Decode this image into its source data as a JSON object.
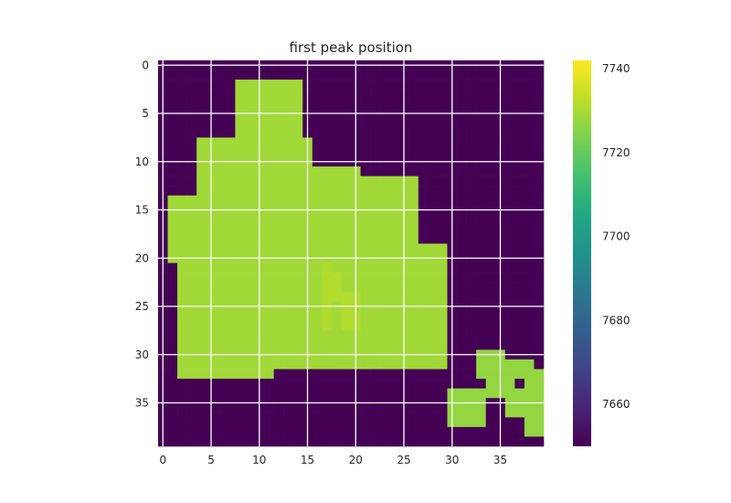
{
  "chart_data": {
    "type": "heatmap",
    "title": "first peak position",
    "xlabel": "",
    "ylabel": "",
    "rows": 40,
    "cols": 40,
    "x_ticks": [
      0,
      5,
      10,
      15,
      20,
      25,
      30,
      35
    ],
    "y_ticks": [
      0,
      5,
      10,
      15,
      20,
      25,
      30,
      35
    ],
    "grid": true,
    "colormap": "viridis",
    "colorbar": {
      "vmin": 7650,
      "vmax": 7742,
      "ticks": [
        7660,
        7680,
        7700,
        7720,
        7740
      ]
    },
    "background_value": 7650,
    "regions": [
      {
        "value": 7729,
        "rects": [
          [
            2,
            22,
            16,
            30
          ],
          [
            3,
            26,
            27,
            28
          ],
          [
            9,
            22,
            12,
            29
          ],
          [
            10,
            26,
            13,
            30
          ],
          [
            5,
            26,
            12,
            28
          ],
          [
            3,
            29,
            19,
            31
          ],
          [
            4,
            8,
            8,
            16
          ],
          [
            6,
            10,
            9,
            19
          ],
          [
            3,
            11,
            25,
            32
          ],
          [
            2,
            11,
            25,
            32
          ],
          [
            5,
            7,
            26,
            27
          ],
          [
            6,
            10,
            29,
            30
          ],
          [
            1,
            7,
            16,
            19
          ],
          [
            2,
            4,
            23,
            24
          ],
          [
            4,
            8,
            23,
            25
          ],
          [
            7,
            15,
            8,
            27
          ],
          [
            8,
            14,
            2,
            18
          ],
          [
            1,
            10,
            14,
            20
          ],
          [
            3,
            5,
            16,
            16
          ],
          [
            4,
            19,
            17,
            20
          ],
          [
            4,
            23,
            21,
            23
          ],
          [
            16,
            5,
            10,
            15
          ],
          [
            13,
            14,
            15,
            17
          ],
          [
            17,
            20,
            11,
            14
          ],
          [
            14,
            16,
            11,
            13
          ],
          [
            13,
            12,
            10,
            12
          ],
          [
            16,
            14,
            21,
            23
          ],
          [
            16,
            13,
            16,
            17
          ]
        ]
      },
      {
        "value": 7727,
        "rects": [
          [
            30,
            33,
            34,
            37
          ],
          [
            31,
            33,
            34,
            36
          ],
          [
            34,
            36,
            31,
            34
          ],
          [
            36,
            37,
            34,
            36
          ],
          [
            33,
            35,
            30,
            32
          ],
          [
            38,
            39,
            32,
            38
          ],
          [
            37,
            38,
            31,
            32
          ]
        ]
      },
      {
        "value": 7731,
        "rects": [
          [
            18,
            18,
            22,
            24
          ],
          [
            17,
            17,
            21,
            27
          ],
          [
            19,
            19,
            24,
            27
          ],
          [
            20,
            20,
            24,
            27
          ]
        ]
      }
    ]
  }
}
